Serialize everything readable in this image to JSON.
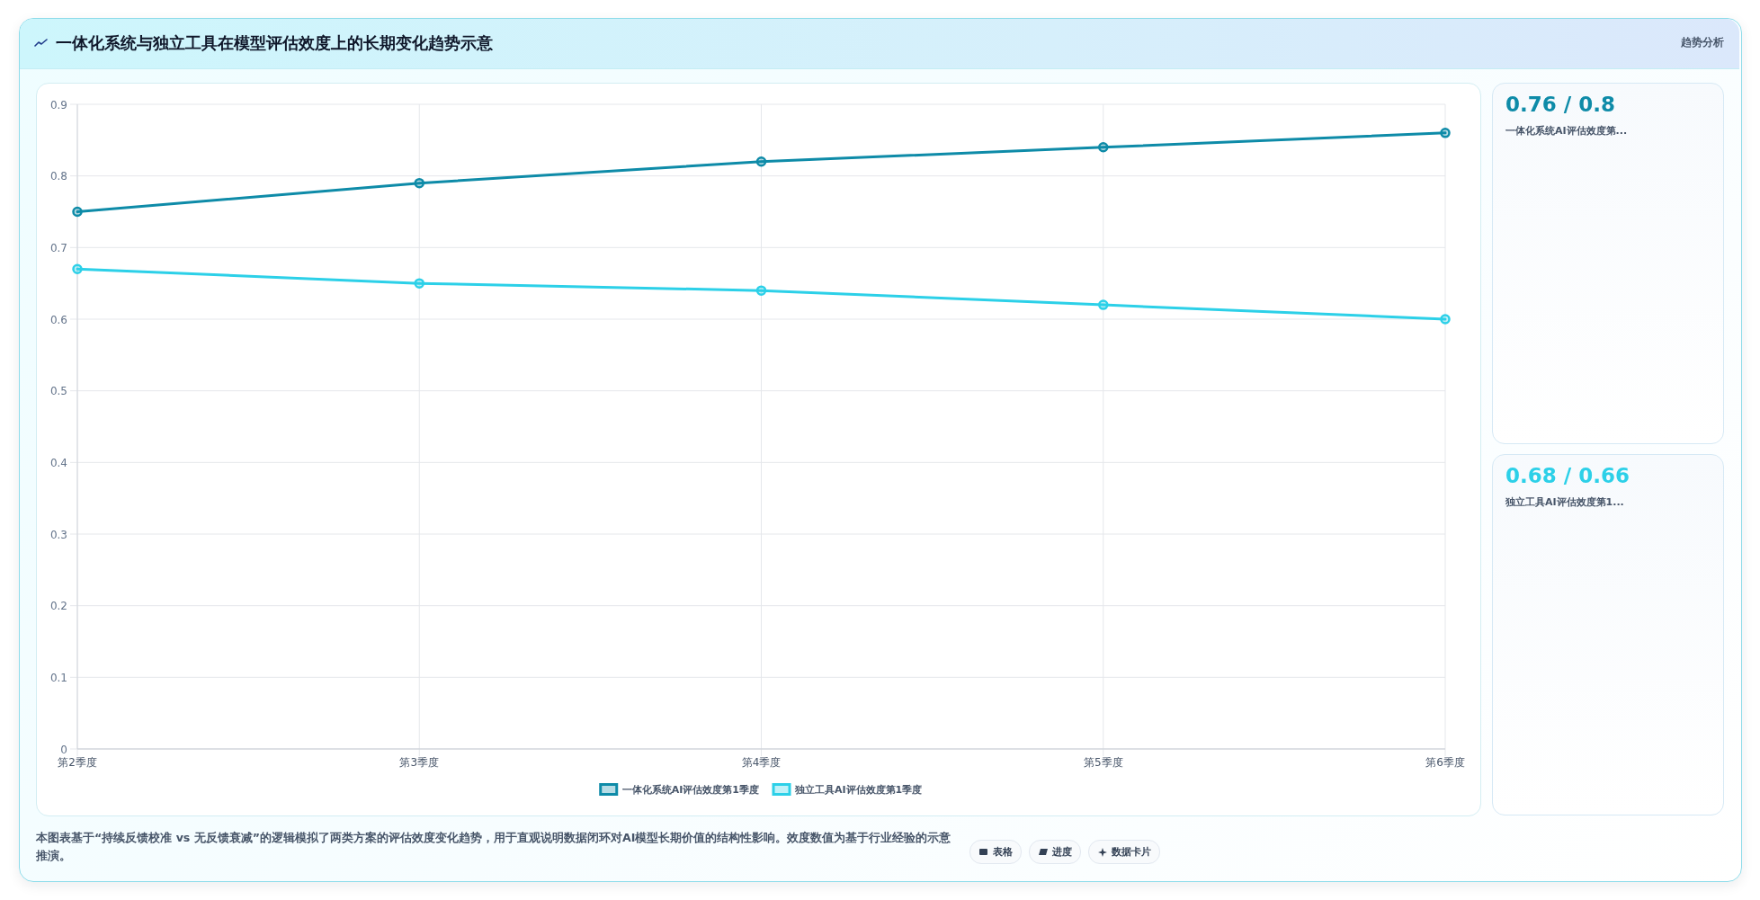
{
  "chart_data": [
    {
      "type": "line",
      "title": "一体化系统与独立工具在模型评估效度上的长期变化趋势示意",
      "categories": [
        "第2季度",
        "第3季度",
        "第4季度",
        "第5季度",
        "第6季度"
      ],
      "series": [
        {
          "name": "一体化系统AI评估效度第1季度",
          "color": "#0e8ba8",
          "values": [
            0.75,
            0.79,
            0.82,
            0.84,
            0.86
          ]
        },
        {
          "name": "独立工具AI评估效度第1季度",
          "color": "#2cd0e8",
          "values": [
            0.67,
            0.65,
            0.64,
            0.62,
            0.6
          ]
        }
      ],
      "ylim": [
        0,
        0.9
      ],
      "yticks": [
        0,
        0.1,
        0.2,
        0.3,
        0.4,
        0.5,
        0.6,
        0.7,
        0.8,
        0.9
      ],
      "grid": true,
      "legend": "bottom",
      "marker": "circle",
      "line_style": "solid",
      "annotations": [
        "趋势分析",
        "本图表基于“持续反馈校准 vs 无反馈衰减”的逻辑模拟了两类方案的评估效度变化趋势，用于直观说明数据闭环对AI模型长期价值的结构性影响。效度数值为基于行业经验的示意推演。",
        "表格",
        "进度",
        "数据卡片"
      ]
    },
    {
      "type": "other",
      "title": "0.76 / 0.8",
      "subtitle": "一体化系统AI评估效度第..."
    },
    {
      "type": "other",
      "title": "0.68 / 0.66",
      "subtitle": "独立工具AI评估效度第1..."
    }
  ]
}
